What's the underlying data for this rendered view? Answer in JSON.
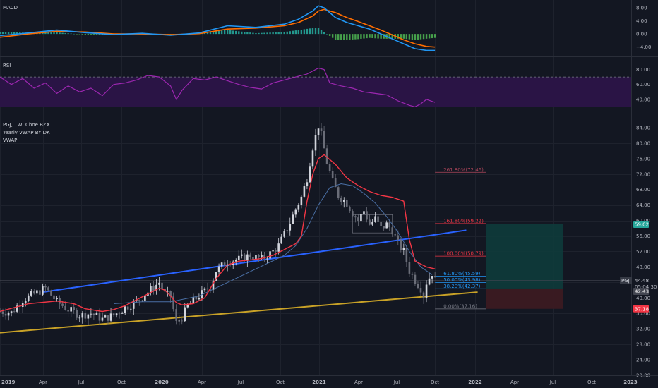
{
  "colors": {
    "background": "#131722",
    "grid": "#1e222d",
    "axis_text": "#b2b5be",
    "bull": "#d1d4dc",
    "bear": "#6a6d78",
    "vwap": "#f23645",
    "sma": "#4a6fa5",
    "trend_upper": "#2962ff",
    "trend_lower": "#c9a227",
    "macd_line": "#2196f3",
    "signal_line": "#ff6d00",
    "hist_pos": "#26a69a",
    "hist_pos_bright": "#4caf50",
    "rsi_line": "#9c27b0",
    "rsi_band": "#2a1445",
    "long_profit": "#0e3b3b",
    "long_loss": "#3b1a22",
    "target_tag": "#26a69a",
    "stop_tag": "#f23645"
  },
  "macd_pane": {
    "label": "MACD",
    "ticks": [
      "8.00",
      "4.00",
      "0.00",
      "−4.00"
    ]
  },
  "rsi_pane": {
    "label": "RSI",
    "ticks": [
      "80.00",
      "60.00",
      "40.00"
    ]
  },
  "legend": {
    "symbol": "PGJ, 1W, Cboe BZX",
    "indicator1": "Yearly VWAP BY DK",
    "indicator2": "VWAP"
  },
  "price_axis": {
    "ticks": [
      "84.00",
      "80.00",
      "76.00",
      "72.00",
      "68.00",
      "64.00",
      "60.00",
      "56.00",
      "52.00",
      "48.00",
      "44.00",
      "40.00",
      "36.00",
      "32.00",
      "28.00",
      "24.00",
      "20.00"
    ]
  },
  "time_axis": {
    "labels": [
      "2019",
      "Apr",
      "Jul",
      "Oct",
      "2020",
      "Apr",
      "Jul",
      "Oct",
      "2021",
      "Apr",
      "Jul",
      "Oct",
      "2022",
      "Apr",
      "Jul",
      "Oct",
      "2023"
    ]
  },
  "fib_levels": [
    {
      "label": "261.80%(72.46)",
      "price": 72.46,
      "color": "#b2475c"
    },
    {
      "label": "161.80%(59.22)",
      "price": 59.22,
      "color": "#f23645"
    },
    {
      "label": "100.00%(50.79)",
      "price": 50.79,
      "color": "#f23645"
    },
    {
      "label": "61.80%(45.59)",
      "price": 45.59,
      "color": "#2196f3"
    },
    {
      "label": "50.00%(43.98)",
      "price": 43.98,
      "color": "#2196f3"
    },
    {
      "label": "38.20%(42.37)",
      "price": 42.37,
      "color": "#2196f3"
    },
    {
      "label": "0.00%(37.16)",
      "price": 37.16,
      "color": "#787b86"
    }
  ],
  "price_tags": {
    "target": "59.02",
    "symbol": "PGJ",
    "last": "44.48",
    "countdown": "05:04:30",
    "entry": "42.43",
    "stop": "37.18"
  },
  "chart_data": {
    "type": "candlestick",
    "symbol": "PGJ",
    "interval": "1W",
    "exchange": "Cboe BZX",
    "close_series": [
      [
        0,
        36.5
      ],
      [
        4,
        36.2
      ],
      [
        8,
        39.5
      ],
      [
        12,
        41.0
      ],
      [
        16,
        42.5
      ],
      [
        20,
        39.0
      ],
      [
        24,
        37.0
      ],
      [
        28,
        35.5
      ],
      [
        32,
        36.0
      ],
      [
        36,
        34.5
      ],
      [
        40,
        35.5
      ],
      [
        44,
        37.5
      ],
      [
        48,
        39.0
      ],
      [
        52,
        41.5
      ],
      [
        56,
        44.0
      ],
      [
        58,
        41.0
      ],
      [
        60,
        40.5
      ],
      [
        62,
        33.5
      ],
      [
        64,
        35.0
      ],
      [
        66,
        38.0
      ],
      [
        70,
        40.5
      ],
      [
        74,
        43.0
      ],
      [
        76,
        47.0
      ],
      [
        80,
        49.5
      ],
      [
        84,
        50.0
      ],
      [
        88,
        51.0
      ],
      [
        92,
        50.0
      ],
      [
        96,
        52.0
      ],
      [
        98,
        53.5
      ],
      [
        100,
        56.5
      ],
      [
        102,
        59.5
      ],
      [
        104,
        63.0
      ],
      [
        106,
        66.0
      ],
      [
        108,
        71.0
      ],
      [
        110,
        79.0
      ],
      [
        112,
        84.5
      ],
      [
        113,
        82.0
      ],
      [
        115,
        75.0
      ],
      [
        117,
        70.0
      ],
      [
        119,
        66.5
      ],
      [
        122,
        64.5
      ],
      [
        124,
        62.0
      ],
      [
        126,
        60.0
      ],
      [
        128,
        62.5
      ],
      [
        130,
        59.0
      ],
      [
        132,
        60.5
      ],
      [
        134,
        58.0
      ],
      [
        136,
        59.0
      ],
      [
        138,
        57.5
      ],
      [
        140,
        54.0
      ],
      [
        142,
        52.0
      ],
      [
        144,
        47.0
      ],
      [
        146,
        44.5
      ],
      [
        148,
        42.5
      ],
      [
        149,
        40.5
      ],
      [
        150,
        44.0
      ],
      [
        152,
        46.5
      ],
      [
        153,
        44.48
      ]
    ],
    "x_range_weeks": [
      0,
      222
    ],
    "ylim": [
      20,
      86
    ],
    "macd": {
      "x": [
        0,
        10,
        20,
        30,
        40,
        50,
        60,
        70,
        80,
        90,
        100,
        105,
        110,
        112,
        114,
        118,
        122,
        126,
        130,
        134,
        138,
        142,
        146,
        150,
        153
      ],
      "macd": [
        -0.5,
        0.3,
        1.2,
        0.4,
        -0.2,
        0.2,
        -0.4,
        0.3,
        2.5,
        2.0,
        3.0,
        4.5,
        7.0,
        8.6,
        8.0,
        5.0,
        3.5,
        2.5,
        1.5,
        0.0,
        -1.5,
        -3.0,
        -4.5,
        -5.0,
        -5.0
      ],
      "signal": [
        -1.0,
        0.0,
        0.8,
        0.6,
        0.0,
        0.0,
        -0.2,
        0.1,
        1.5,
        1.8,
        2.5,
        3.5,
        5.5,
        7.0,
        7.5,
        6.5,
        5.0,
        3.8,
        2.5,
        1.2,
        -0.3,
        -1.8,
        -3.0,
        -3.8,
        -4.0
      ],
      "ylim": [
        -6,
        9.5
      ]
    },
    "rsi": {
      "x": [
        0,
        4,
        8,
        12,
        16,
        20,
        24,
        28,
        32,
        36,
        40,
        44,
        48,
        52,
        56,
        60,
        62,
        64,
        68,
        72,
        76,
        80,
        84,
        88,
        92,
        96,
        100,
        104,
        108,
        112,
        114,
        116,
        120,
        124,
        128,
        132,
        136,
        140,
        144,
        146,
        148,
        150,
        153
      ],
      "values": [
        70,
        60,
        68,
        55,
        62,
        48,
        58,
        50,
        55,
        45,
        60,
        62,
        66,
        72,
        70,
        58,
        40,
        52,
        68,
        66,
        70,
        65,
        60,
        56,
        54,
        62,
        66,
        70,
        74,
        82,
        80,
        62,
        58,
        55,
        50,
        48,
        46,
        38,
        32,
        30,
        34,
        40,
        36
      ],
      "band": [
        30,
        70
      ],
      "ylim": [
        20,
        90
      ]
    },
    "vwap": {
      "x": [
        0,
        10,
        20,
        26,
        30,
        36,
        40,
        44,
        48,
        52,
        56,
        58,
        60,
        62,
        64,
        68,
        72,
        76,
        80,
        84,
        88,
        92,
        96,
        100,
        104,
        106,
        108,
        110,
        112,
        114,
        118,
        122,
        126,
        130,
        134,
        138,
        142,
        144,
        146,
        150,
        153
      ],
      "values": [
        36.5,
        38.5,
        39.2,
        38.5,
        37.2,
        36.5,
        37.0,
        38.0,
        39.5,
        41.0,
        42.5,
        42.0,
        40.5,
        38.8,
        38.2,
        38.5,
        40.0,
        45.0,
        48.5,
        49.5,
        49.8,
        50.2,
        51.0,
        52.5,
        54.0,
        56.0,
        65.0,
        72.0,
        76.0,
        77.0,
        74.5,
        71.0,
        69.0,
        67.5,
        66.5,
        66.0,
        65.0,
        55.0,
        49.5,
        48.0,
        47.5
      ]
    },
    "sma": {
      "x": [
        40,
        50,
        60,
        70,
        80,
        90,
        100,
        104,
        108,
        112,
        116,
        120,
        124,
        128,
        132,
        136,
        140,
        144,
        148,
        152
      ],
      "values": [
        38.5,
        39.0,
        39.0,
        40.5,
        44.0,
        47.5,
        51.0,
        53.5,
        58.0,
        64.0,
        68.5,
        69.5,
        69.0,
        67.0,
        64.5,
        61.0,
        57.0,
        52.0,
        48.0,
        46.0
      ]
    },
    "trendlines": [
      {
        "name": "upper",
        "x1": 15,
        "y1": 41.5,
        "x2": 164,
        "y2": 57.5
      },
      {
        "name": "lower",
        "x1": 0,
        "y1": 31.0,
        "x2": 168,
        "y2": 41.5
      }
    ],
    "long_position": {
      "entry": 42.43,
      "target": 59.02,
      "stop": 37.18,
      "x1": 171,
      "x2": 198
    }
  }
}
